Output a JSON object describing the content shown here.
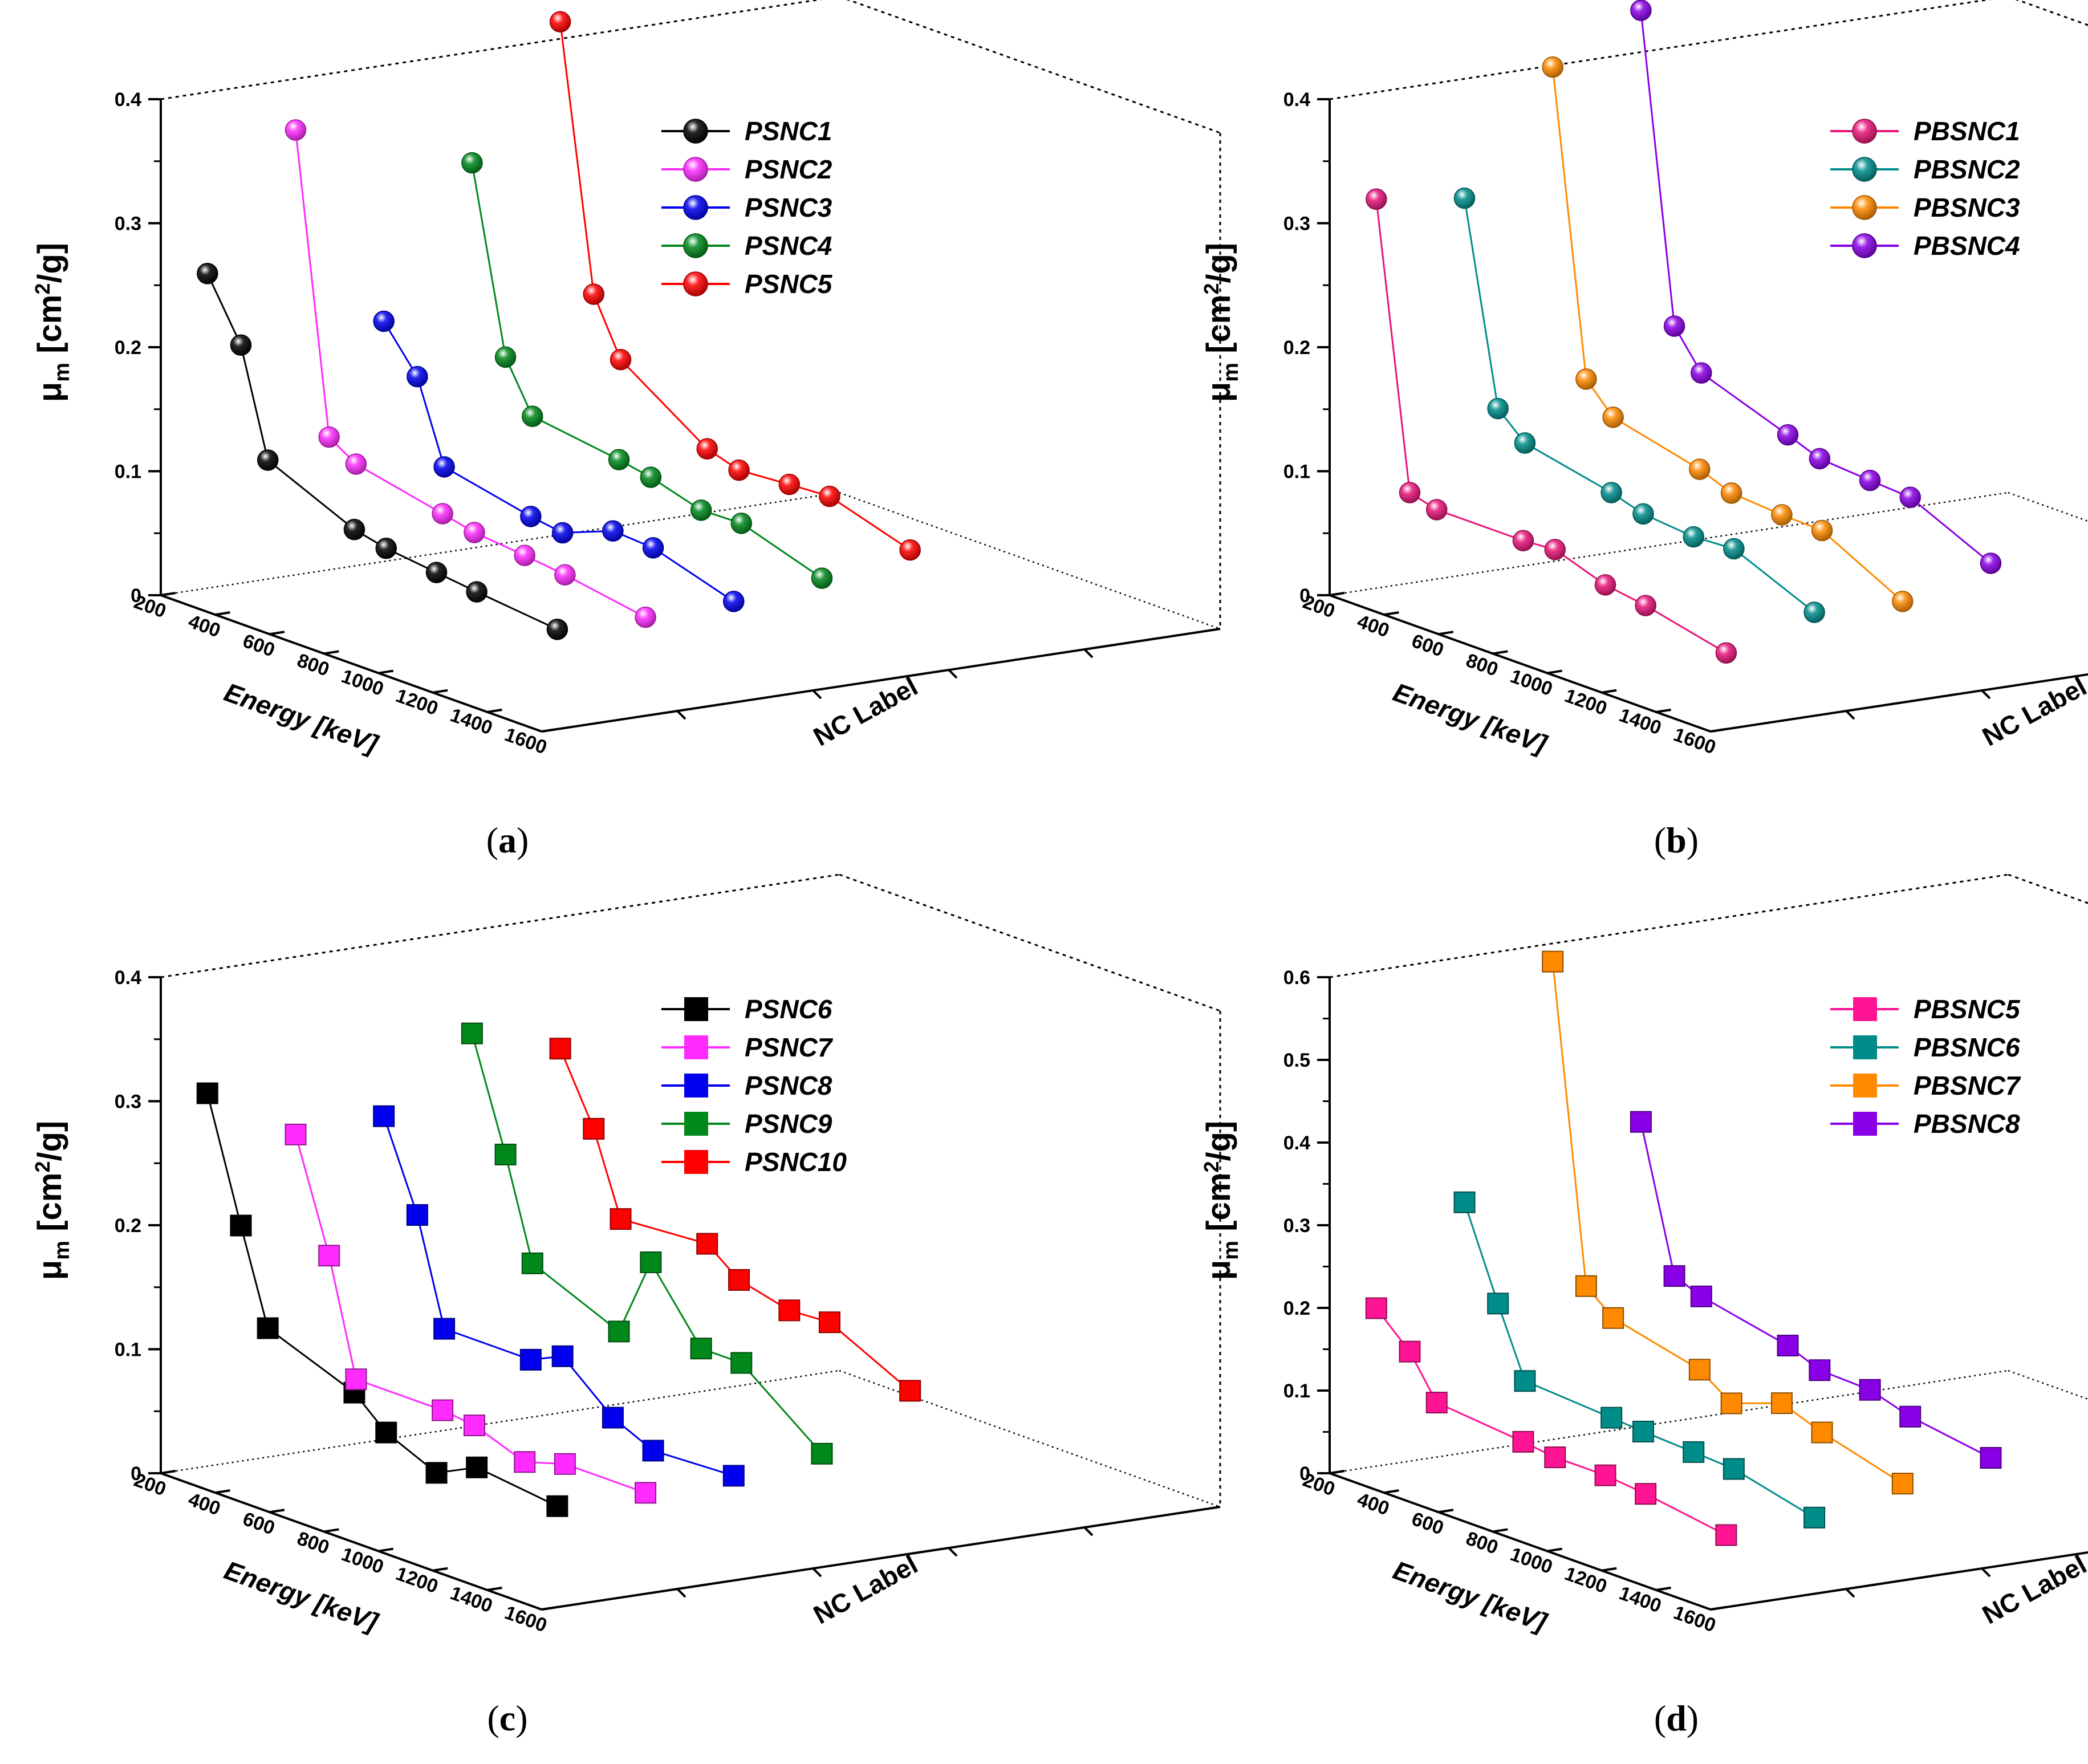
{
  "chart_data": [
    {
      "type": "scatter",
      "panel_label": "a",
      "marker": "sphere",
      "xlabel": "Energy [keV]",
      "zlabel_text": "NC Label",
      "ylabel": {
        "mu": "μ",
        "sub": "m",
        "unit_a": "[cm",
        "sup": "2",
        "unit_b": "/g]"
      },
      "y_ticks": [
        "0",
        "0.1",
        "0.2",
        "0.3",
        "0.4"
      ],
      "x_ticks": [
        "200",
        "400",
        "600",
        "800",
        "1000",
        "1200",
        "1400",
        "1600"
      ],
      "ylim": [
        0,
        0.4
      ],
      "xlim": [
        200,
        1600
      ],
      "legend_position": "top-right",
      "energies": [
        122,
        245,
        344,
        662,
        779,
        964,
        1112,
        1408
      ],
      "series": [
        {
          "name": "PSNC1",
          "color": "#000000",
          "values": [
            0.245,
            0.197,
            0.112,
            0.081,
            0.075,
            0.07,
            0.066,
            0.059
          ]
        },
        {
          "name": "PSNC2",
          "color": "#ff2bff",
          "values": [
            0.35,
            0.112,
            0.098,
            0.083,
            0.077,
            0.073,
            0.069,
            0.058
          ]
        },
        {
          "name": "PSNC3",
          "color": "#0000ee",
          "values": [
            0.185,
            0.15,
            0.085,
            0.07,
            0.066,
            0.082,
            0.08,
            0.06
          ]
        },
        {
          "name": "PSNC4",
          "color": "#00881b",
          "values": [
            0.302,
            0.155,
            0.115,
            0.105,
            0.1,
            0.088,
            0.089,
            0.068
          ]
        },
        {
          "name": "PSNC5",
          "color": "#ff0000",
          "values": [
            0.405,
            0.195,
            0.15,
            0.103,
            0.095,
            0.098,
            0.1,
            0.08
          ]
        }
      ]
    },
    {
      "type": "scatter",
      "panel_label": "b",
      "marker": "sphere",
      "xlabel": "Energy [keV]",
      "zlabel_text": "NC Label",
      "ylabel": {
        "mu": "μ",
        "sub": "m",
        "unit_a": "[cm",
        "sup": "2",
        "unit_b": "/g]"
      },
      "y_ticks": [
        "0",
        "0.1",
        "0.2",
        "0.3",
        "0.4"
      ],
      "x_ticks": [
        "200",
        "400",
        "600",
        "800",
        "1000",
        "1200",
        "1400",
        "1600"
      ],
      "ylim": [
        0,
        0.4
      ],
      "xlim": [
        200,
        1600
      ],
      "legend_position": "top-right",
      "energies": [
        122,
        245,
        344,
        662,
        779,
        964,
        1112,
        1408
      ],
      "series": [
        {
          "name": "PBSNC1",
          "color": "#e8157a",
          "values": [
            0.305,
            0.078,
            0.072,
            0.072,
            0.074,
            0.06,
            0.055,
            0.04
          ]
        },
        {
          "name": "PBSNC2",
          "color": "#008d8a",
          "values": [
            0.295,
            0.135,
            0.115,
            0.1,
            0.092,
            0.088,
            0.09,
            0.062
          ]
        },
        {
          "name": "PBSNC3",
          "color": "#ff8a00",
          "values": [
            0.39,
            0.148,
            0.125,
            0.108,
            0.098,
            0.095,
            0.094,
            0.06
          ]
        },
        {
          "name": "PBSNC4",
          "color": "#8a00e6",
          "values": [
            0.425,
            0.18,
            0.15,
            0.125,
            0.115,
            0.112,
            0.11,
            0.08
          ]
        }
      ]
    },
    {
      "type": "scatter",
      "panel_label": "c",
      "marker": "cube",
      "xlabel": "Energy [keV]",
      "zlabel_text": "NC Label",
      "ylabel": {
        "mu": "μ",
        "sub": "m",
        "unit_a": "[cm",
        "sup": "2",
        "unit_b": "/g]"
      },
      "y_ticks": [
        "0",
        "0.1",
        "0.2",
        "0.3",
        "0.4"
      ],
      "x_ticks": [
        "200",
        "400",
        "600",
        "800",
        "1000",
        "1200",
        "1400",
        "1600"
      ],
      "ylim": [
        0,
        0.4
      ],
      "xlim": [
        200,
        1600
      ],
      "legend_position": "top-right",
      "energies": [
        122,
        245,
        344,
        662,
        779,
        964,
        1112,
        1408
      ],
      "series": [
        {
          "name": "PSNC6",
          "color": "#000000",
          "values": [
            0.292,
            0.195,
            0.12,
            0.093,
            0.07,
            0.052,
            0.068,
            0.06
          ]
        },
        {
          "name": "PSNC7",
          "color": "#ff2bff",
          "values": [
            0.248,
            0.16,
            0.068,
            0.068,
            0.065,
            0.05,
            0.06,
            0.06
          ]
        },
        {
          "name": "PSNC8",
          "color": "#0000ee",
          "values": [
            0.252,
            0.182,
            0.098,
            0.098,
            0.11,
            0.075,
            0.06,
            0.063
          ]
        },
        {
          "name": "PSNC9",
          "color": "#00881b",
          "values": [
            0.308,
            0.22,
            0.14,
            0.11,
            0.175,
            0.12,
            0.12,
            0.07
          ]
        },
        {
          "name": "PSNC10",
          "color": "#ff0000",
          "values": [
            0.285,
            0.23,
            0.165,
            0.17,
            0.15,
            0.14,
            0.142,
            0.11
          ]
        }
      ]
    },
    {
      "type": "scatter",
      "panel_label": "d",
      "marker": "cube",
      "xlabel": "Energy [keV]",
      "zlabel_text": "NC Label",
      "ylabel": {
        "mu": "μ",
        "sub": "m",
        "unit_a": "[cm",
        "sup": "2",
        "unit_b": "/g]"
      },
      "y_ticks": [
        "0",
        "0.1",
        "0.2",
        "0.3",
        "0.4",
        "0.5",
        "0.6"
      ],
      "x_ticks": [
        "200",
        "400",
        "600",
        "800",
        "1000",
        "1200",
        "1400",
        "1600"
      ],
      "ylim": [
        0,
        0.6
      ],
      "xlim": [
        200,
        1600
      ],
      "legend_position": "top-right",
      "energies": [
        122,
        245,
        344,
        662,
        779,
        964,
        1112,
        1408
      ],
      "series": [
        {
          "name": "PBSNC5",
          "color": "#ff1493",
          "values": [
            0.178,
            0.14,
            0.09,
            0.08,
            0.075,
            0.075,
            0.07,
            0.055
          ]
        },
        {
          "name": "PBSNC6",
          "color": "#008d8a",
          "values": [
            0.29,
            0.182,
            0.1,
            0.093,
            0.09,
            0.087,
            0.084,
            0.06
          ]
        },
        {
          "name": "PBSNC7",
          "color": "#ff8a00",
          "values": [
            0.565,
            0.187,
            0.16,
            0.135,
            0.108,
            0.13,
            0.112,
            0.085
          ]
        },
        {
          "name": "PBSNC8",
          "color": "#8a00e6",
          "values": [
            0.355,
            0.183,
            0.17,
            0.148,
            0.132,
            0.13,
            0.115,
            0.1
          ]
        }
      ]
    }
  ]
}
